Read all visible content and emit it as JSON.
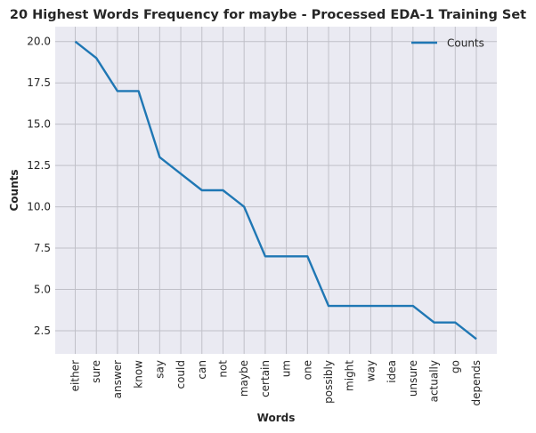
{
  "chart_data": {
    "type": "line",
    "title": "20 Highest Words Frequency for maybe - Processed EDA-1 Training Set",
    "xlabel": "Words",
    "ylabel": "Counts",
    "categories": [
      "either",
      "sure",
      "answer",
      "know",
      "say",
      "could",
      "can",
      "not",
      "maybe",
      "certain",
      "um",
      "one",
      "possibly",
      "might",
      "way",
      "idea",
      "unsure",
      "actually",
      "go",
      "depends"
    ],
    "series": [
      {
        "name": "Counts",
        "values": [
          20,
          19,
          17,
          17,
          13,
          12,
          11,
          11,
          10,
          7,
          7,
          7,
          4,
          4,
          4,
          4,
          4,
          3,
          3,
          2
        ],
        "color": "#1f77b4"
      }
    ],
    "ylim": [
      1.1,
      20.9
    ],
    "yticks": [
      "2.5",
      "5.0",
      "7.5",
      "10.0",
      "12.5",
      "15.0",
      "17.5",
      "20.0"
    ],
    "grid": true,
    "legend": "top-right",
    "background": "#eaeaf2",
    "grid_color": "#c0c0c8"
  }
}
